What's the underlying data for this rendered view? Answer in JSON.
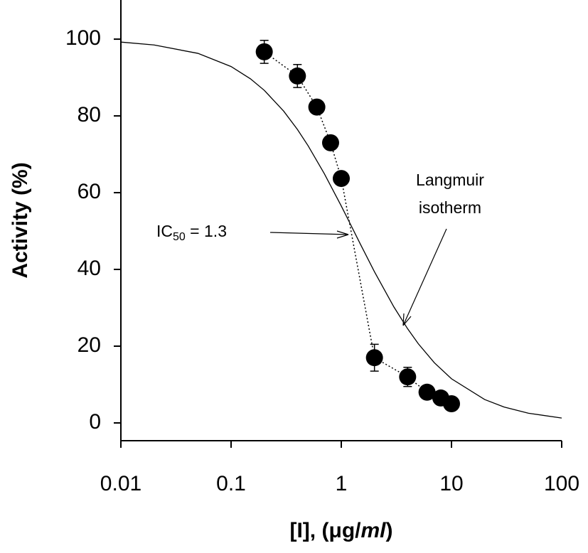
{
  "chart_data": {
    "type": "scatter",
    "x_label_parts": [
      "[I], (μg/",
      "ml",
      ")"
    ],
    "y_label": "Activity (%)",
    "x": [
      0.2,
      0.4,
      0.6,
      0.8,
      1,
      2,
      4,
      6,
      8,
      10
    ],
    "values": [
      96.7,
      90.4,
      82.3,
      73,
      63.7,
      17,
      12,
      8,
      6.5,
      5
    ],
    "errors": [
      3,
      3,
      1,
      1,
      1,
      3.5,
      2.5,
      1,
      1,
      1
    ],
    "color": "#000000",
    "connect_dotted": true,
    "curve": {
      "x": [
        0.01,
        0.02,
        0.05,
        0.1,
        0.15,
        0.2,
        0.3,
        0.4,
        0.5,
        0.7,
        1,
        1.2,
        1.5,
        2,
        3,
        4,
        5,
        7,
        10,
        20,
        30,
        50,
        100
      ],
      "values": [
        99.24,
        98.48,
        96.3,
        92.86,
        89.66,
        86.67,
        81.25,
        76.47,
        72.22,
        65,
        56.52,
        52,
        46.43,
        39.39,
        30.23,
        24.53,
        20.63,
        15.66,
        11.5,
        6.1,
        4.15,
        2.53,
        1.28
      ]
    },
    "x_log": true,
    "xlim": [
      0.01,
      100
    ],
    "ylim": [
      -4.63,
      110.2
    ],
    "xticks": [
      0.01,
      0.1,
      1,
      10,
      100
    ],
    "yticks": [
      0,
      20,
      40,
      60,
      80,
      100
    ],
    "annotations": {
      "ic50": [
        "IC",
        "50",
        " = 1.3"
      ],
      "langmuir": [
        "Langmuir",
        "isotherm"
      ]
    }
  }
}
